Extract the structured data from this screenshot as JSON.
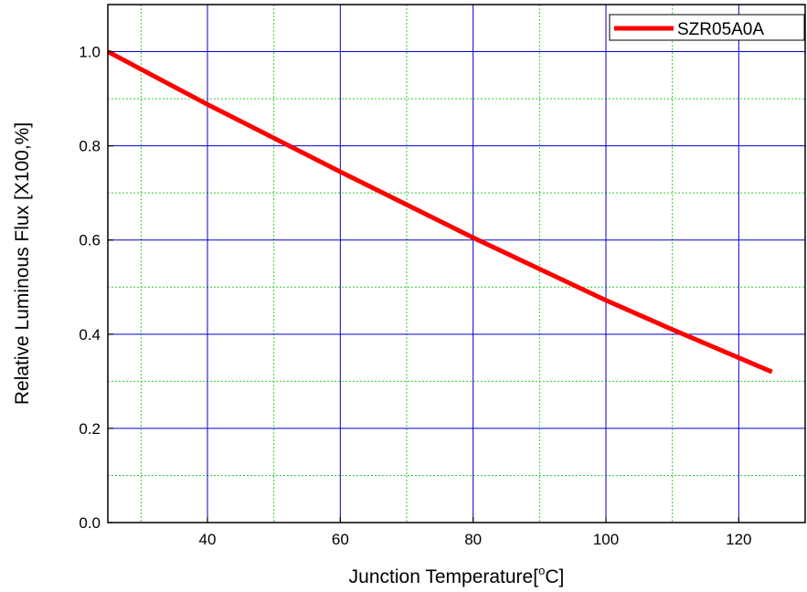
{
  "chart_data": {
    "type": "line",
    "title": "",
    "xlabel": "Junction Temperature[",
    "xlabel_sup": "o",
    "xlabel_suffix": "C]",
    "ylabel": "Relative Luminous Flux [X100,%]",
    "xlim": [
      25,
      130
    ],
    "ylim": [
      0.0,
      1.1
    ],
    "x_ticks": [
      40,
      60,
      80,
      100,
      120
    ],
    "x_tick_labels": [
      "40",
      "60",
      "80",
      "100",
      "120"
    ],
    "y_ticks": [
      0.0,
      0.2,
      0.4,
      0.6,
      0.8,
      1.0
    ],
    "y_tick_labels": [
      "0.0",
      "0.2",
      "0.4",
      "0.6",
      "0.8",
      "1.0"
    ],
    "x_minor_grid": [
      30,
      50,
      70,
      90,
      110
    ],
    "y_minor_grid": [
      0.1,
      0.3,
      0.5,
      0.7,
      0.9
    ],
    "grid": true,
    "major_grid_color": "#0000cc",
    "minor_grid_color": "#33cc33",
    "legend_position": "top-right",
    "series": [
      {
        "name": "SZR05A0A",
        "color": "#ff0000",
        "x": [
          25,
          40,
          60,
          80,
          100,
          110,
          125
        ],
        "y": [
          1.0,
          0.888,
          0.745,
          0.605,
          0.472,
          0.41,
          0.32
        ]
      }
    ]
  }
}
